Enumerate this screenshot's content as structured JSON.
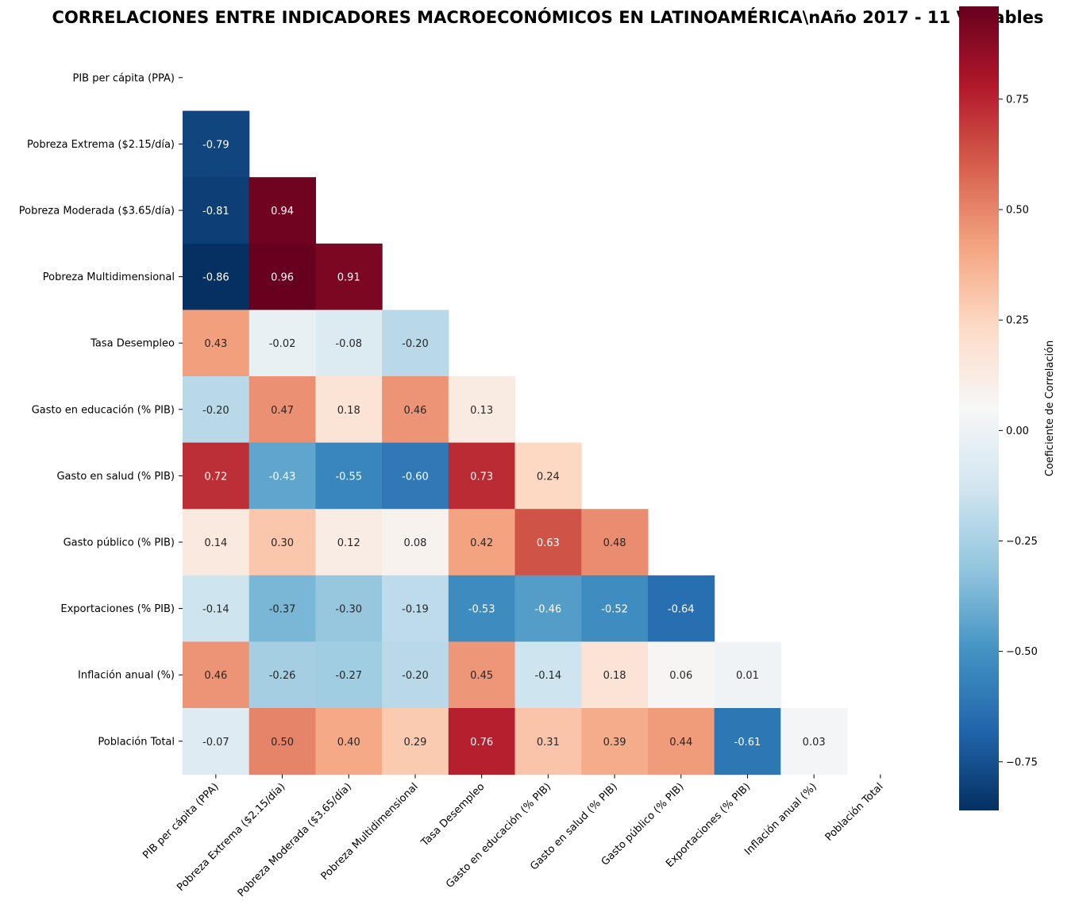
{
  "chart_data": {
    "type": "heatmap",
    "title": "CORRELACIONES ENTRE INDICADORES MACROECONÓMICOS EN LATINOAMÉRICA\\nAño 2017 - 11 Variables",
    "variables": [
      "PIB per cápita (PPA)",
      "Pobreza Extrema ($2.15/día)",
      "Pobreza Moderada ($3.65/día)",
      "Pobreza Multidimensional",
      "Tasa Desempleo",
      "Gasto en educación (% PIB)",
      "Gasto en salud (% PIB)",
      "Gasto público (% PIB)",
      "Exportaciones (% PIB)",
      "Inflación anual (%)",
      "Población Total"
    ],
    "mask": "upper-triangle-including-diagonal",
    "lower_triangle": [
      [],
      [
        -0.79
      ],
      [
        -0.81,
        0.94
      ],
      [
        -0.86,
        0.96,
        0.91
      ],
      [
        0.43,
        -0.02,
        -0.08,
        -0.2
      ],
      [
        -0.2,
        0.47,
        0.18,
        0.46,
        0.13
      ],
      [
        0.72,
        -0.43,
        -0.55,
        -0.6,
        0.73,
        0.24
      ],
      [
        0.14,
        0.3,
        0.12,
        0.08,
        0.42,
        0.63,
        0.48
      ],
      [
        -0.14,
        -0.37,
        -0.3,
        -0.19,
        -0.53,
        -0.46,
        -0.52,
        -0.64
      ],
      [
        0.46,
        -0.26,
        -0.27,
        -0.2,
        0.45,
        -0.14,
        0.18,
        0.06,
        0.01
      ],
      [
        -0.07,
        0.5,
        0.4,
        0.29,
        0.76,
        0.31,
        0.39,
        0.44,
        -0.61,
        0.03
      ]
    ],
    "colormap": "RdBu_r",
    "color_range": [
      -0.86,
      0.96
    ],
    "colorbar": {
      "label": "Coeficiente de Correlación",
      "ticks": [
        0.75,
        0.5,
        0.25,
        0.0,
        -0.25,
        -0.5,
        -0.75
      ],
      "tick_labels": [
        "0.75",
        "0.50",
        "0.25",
        "0.00",
        "−0.25",
        "−0.50",
        "−0.75"
      ]
    },
    "value_format": "2 decimals"
  }
}
